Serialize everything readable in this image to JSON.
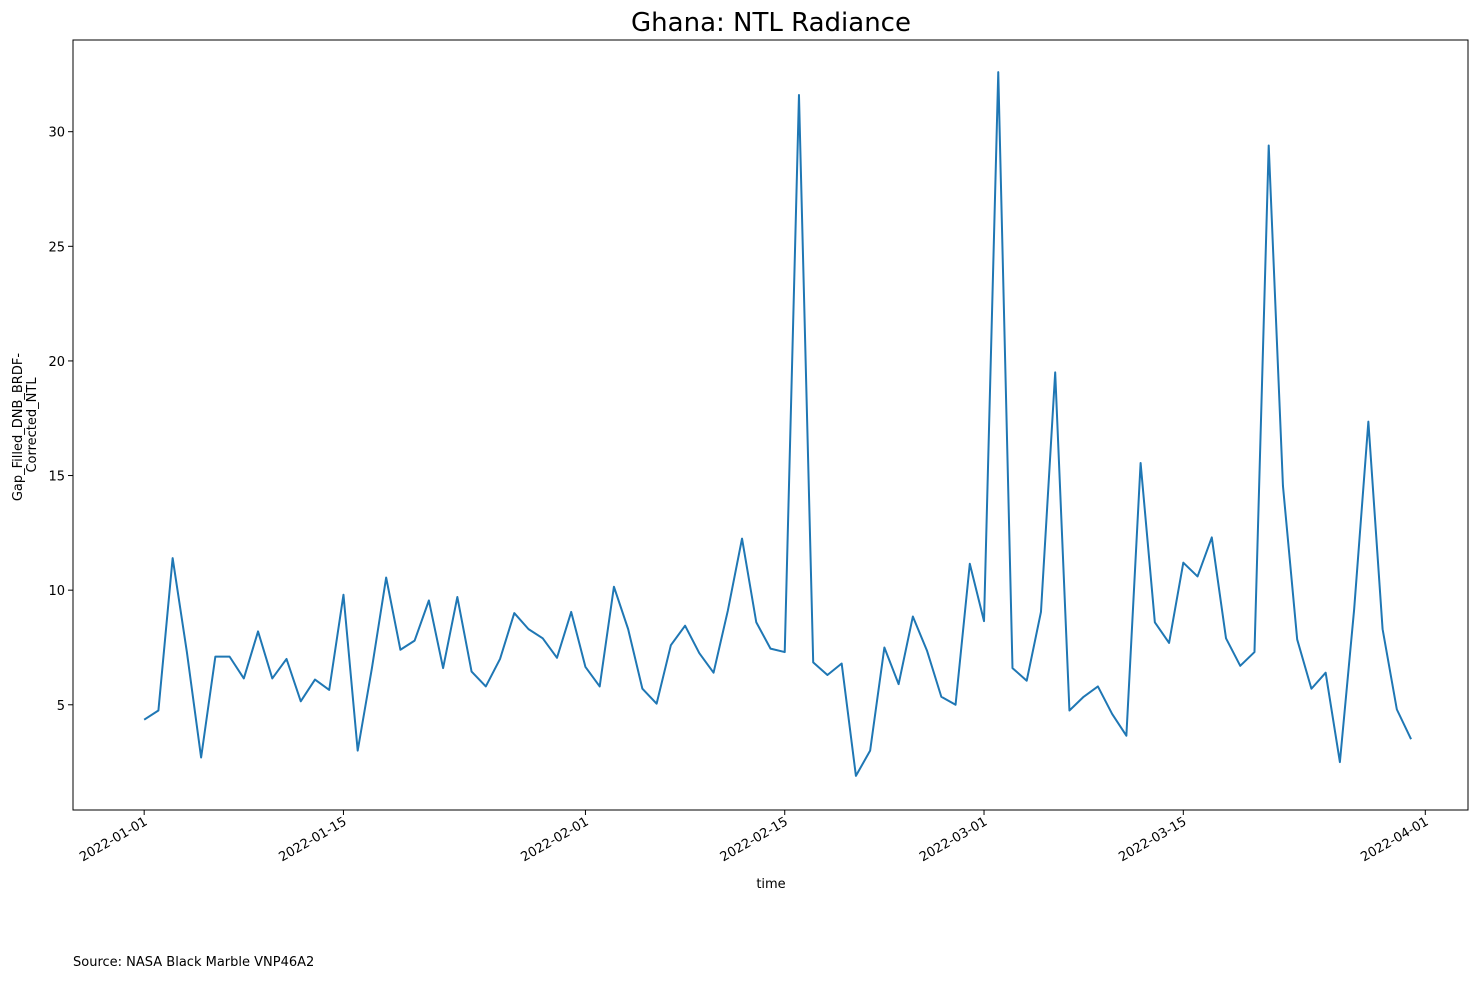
{
  "chart_data": {
    "type": "line",
    "title": "Ghana: NTL Radiance",
    "xlabel": "time",
    "ylabel": [
      "Gap_Filled_DNB_BRDF-",
      "Corrected_NTL"
    ],
    "x_start": "2022-01-01",
    "x_end": "2022-03-31",
    "x_step": "1 day",
    "xlim": [
      "2021-12-27",
      "2022-04-04"
    ],
    "ylim": [
      0.41,
      34.0
    ],
    "x_ticks": [
      "2022-01-01",
      "2022-01-15",
      "2022-02-01",
      "2022-02-15",
      "2022-03-01",
      "2022-03-15",
      "2022-04-01"
    ],
    "y_ticks": [
      5,
      10,
      15,
      20,
      25,
      30
    ],
    "grid": false,
    "series": [
      {
        "color": "#1f77b4",
        "values": [
          4.35,
          4.75,
          11.4,
          7.3,
          2.7,
          7.1,
          7.1,
          6.15,
          8.2,
          6.15,
          7.0,
          5.15,
          6.1,
          5.65,
          9.8,
          3.0,
          6.6,
          10.55,
          7.4,
          7.8,
          9.55,
          6.6,
          9.7,
          6.45,
          5.8,
          7.0,
          9.0,
          8.3,
          7.9,
          7.05,
          9.05,
          6.65,
          5.8,
          10.15,
          8.3,
          5.7,
          5.05,
          7.6,
          8.45,
          7.25,
          6.4,
          9.1,
          12.25,
          8.6,
          7.45,
          7.3,
          31.6,
          6.85,
          6.3,
          6.8,
          1.9,
          3.0,
          7.5,
          5.9,
          8.85,
          7.35,
          5.35,
          5.0,
          11.15,
          8.65,
          32.6,
          6.6,
          6.05,
          9.05,
          19.5,
          4.75,
          5.35,
          5.8,
          4.6,
          3.65,
          15.55,
          8.6,
          7.7,
          11.2,
          10.6,
          12.3,
          7.9,
          6.7,
          7.3,
          29.4,
          14.55,
          7.85,
          5.7,
          6.4,
          2.5,
          9.15,
          17.35,
          8.3,
          4.8,
          3.5
        ]
      }
    ]
  },
  "source_note": "Source: NASA Black Marble VNP46A2"
}
